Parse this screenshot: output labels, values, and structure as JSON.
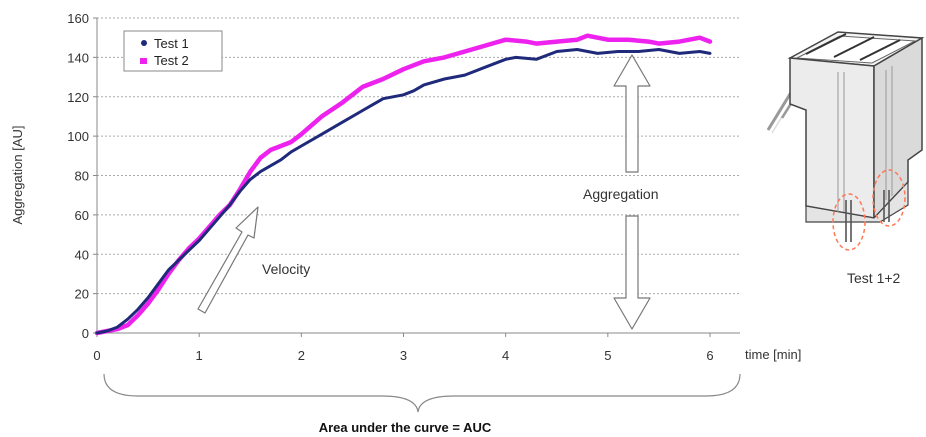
{
  "chart_data": {
    "type": "line",
    "ylabel": "Aggregation [AU]",
    "xlabel": "time [min]",
    "xlim": [
      0,
      6
    ],
    "ylim": [
      0,
      160
    ],
    "x_ticks": [
      "0",
      "1",
      "2",
      "3",
      "4",
      "5",
      "6"
    ],
    "y_ticks": [
      "0",
      "20",
      "40",
      "60",
      "80",
      "100",
      "120",
      "140",
      "160"
    ],
    "grid": "horizontal dotted",
    "legend_position": "top-left",
    "series": [
      {
        "name": "Test 1",
        "color": "#1f2a7a",
        "marker": "dot",
        "x": [
          0,
          0.1,
          0.2,
          0.3,
          0.4,
          0.5,
          0.6,
          0.7,
          0.8,
          0.9,
          1.0,
          1.1,
          1.2,
          1.3,
          1.4,
          1.5,
          1.6,
          1.7,
          1.8,
          1.9,
          2.0,
          2.2,
          2.4,
          2.6,
          2.7,
          2.8,
          3.0,
          3.1,
          3.2,
          3.4,
          3.6,
          3.8,
          4.0,
          4.1,
          4.3,
          4.5,
          4.7,
          4.9,
          5.1,
          5.3,
          5.5,
          5.7,
          5.9,
          6.0
        ],
        "y": [
          0,
          1,
          3,
          7,
          12,
          18,
          25,
          32,
          37,
          42,
          47,
          53,
          59,
          65,
          72,
          78,
          82,
          85,
          88,
          92,
          95,
          101,
          107,
          113,
          116,
          119,
          121,
          123,
          126,
          129,
          131,
          135,
          139,
          140,
          139,
          143,
          144,
          142,
          143,
          143,
          144,
          142,
          143,
          142
        ]
      },
      {
        "name": "Test 2",
        "color": "#ee22ee",
        "marker": "square",
        "x": [
          0,
          0.1,
          0.2,
          0.3,
          0.4,
          0.5,
          0.6,
          0.7,
          0.8,
          0.9,
          1.0,
          1.1,
          1.2,
          1.3,
          1.4,
          1.5,
          1.6,
          1.7,
          1.8,
          1.9,
          2.0,
          2.2,
          2.4,
          2.5,
          2.6,
          2.8,
          3.0,
          3.2,
          3.4,
          3.6,
          3.8,
          4.0,
          4.2,
          4.3,
          4.5,
          4.7,
          4.8,
          5.0,
          5.2,
          5.4,
          5.5,
          5.7,
          5.9,
          6.0
        ],
        "y": [
          0,
          1,
          2,
          4,
          9,
          15,
          22,
          30,
          37,
          43,
          48,
          54,
          60,
          65,
          73,
          82,
          89,
          93,
          95,
          97,
          101,
          110,
          117,
          121,
          125,
          129,
          134,
          138,
          140,
          143,
          146,
          149,
          148,
          147,
          148,
          149,
          151,
          149,
          149,
          148,
          147,
          148,
          150,
          148
        ]
      }
    ],
    "annotations": {
      "velocity": "Velocity",
      "aggregation": "Aggregation",
      "auc": "Area under the curve = AUC",
      "device_caption": "Test 1+2"
    }
  }
}
